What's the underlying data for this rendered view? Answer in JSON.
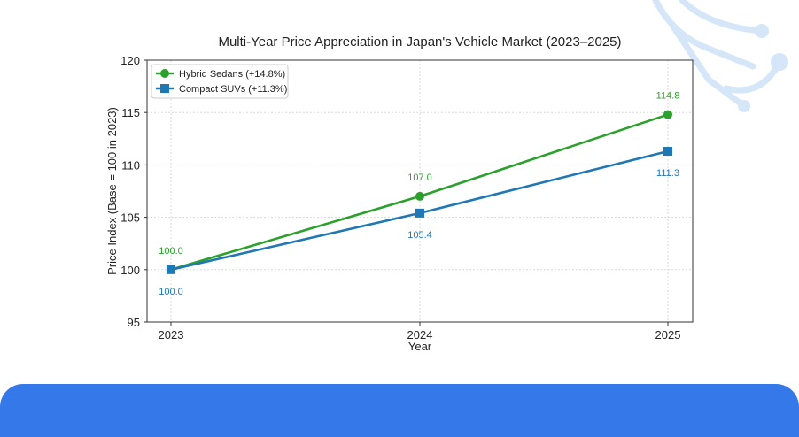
{
  "chart_data": {
    "type": "line",
    "title": "Multi-Year Price Appreciation in Japan's Vehicle Market (2023–2025)",
    "xlabel": "Year",
    "ylabel": "Price Index (Base = 100 in 2023)",
    "categories": [
      "2023",
      "2024",
      "2025"
    ],
    "ylim": [
      95,
      120
    ],
    "yticks": [
      95,
      100,
      105,
      110,
      115,
      120
    ],
    "grid": true,
    "legend_position": "top-left",
    "series": [
      {
        "name": "Hybrid Sedans (+14.8%)",
        "values": [
          100.0,
          107.0,
          114.8
        ],
        "labels": [
          "100.0",
          "107.0",
          "114.8"
        ],
        "color": "#2ca02c",
        "marker": "circle",
        "label_position": "above"
      },
      {
        "name": "Compact SUVs (+11.3%)",
        "values": [
          100.0,
          105.4,
          111.3
        ],
        "labels": [
          "100.0",
          "105.4",
          "111.3"
        ],
        "color": "#1f77b4",
        "marker": "square",
        "label_position": "below"
      }
    ]
  },
  "theme": {
    "accent_bar_color": "#3478e9",
    "decoration_color": "#cfe3f7"
  }
}
